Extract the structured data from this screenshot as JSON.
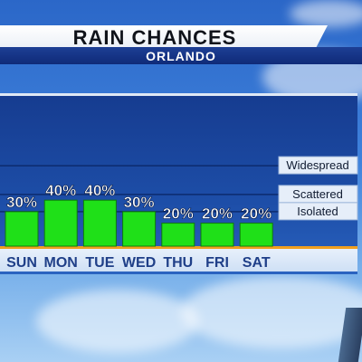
{
  "header": {
    "title": "RAIN CHANCES",
    "subtitle": "ORLANDO"
  },
  "colors": {
    "bar": "#1fe018",
    "bar_edge": "#0e7a0c",
    "baseline": "#f0a020",
    "panel": "#163c90",
    "header_band": "#0f2a78"
  },
  "chart_data": {
    "type": "bar",
    "categories": [
      "SUN",
      "MON",
      "TUE",
      "WED",
      "THU",
      "FRI",
      "SAT"
    ],
    "values": [
      30,
      40,
      40,
      30,
      20,
      20,
      20
    ],
    "value_labels": [
      "30%",
      "40%",
      "40%",
      "30%",
      "20%",
      "20%",
      "20%"
    ],
    "title": "RAIN CHANCES",
    "subtitle": "ORLANDO",
    "ylim": [
      0,
      100
    ],
    "grid": false,
    "reference_bands": [
      {
        "label": "Widespread",
        "value": 70
      },
      {
        "label": "Scattered",
        "value": 45
      },
      {
        "label": "Isolated",
        "value": 30
      }
    ]
  }
}
